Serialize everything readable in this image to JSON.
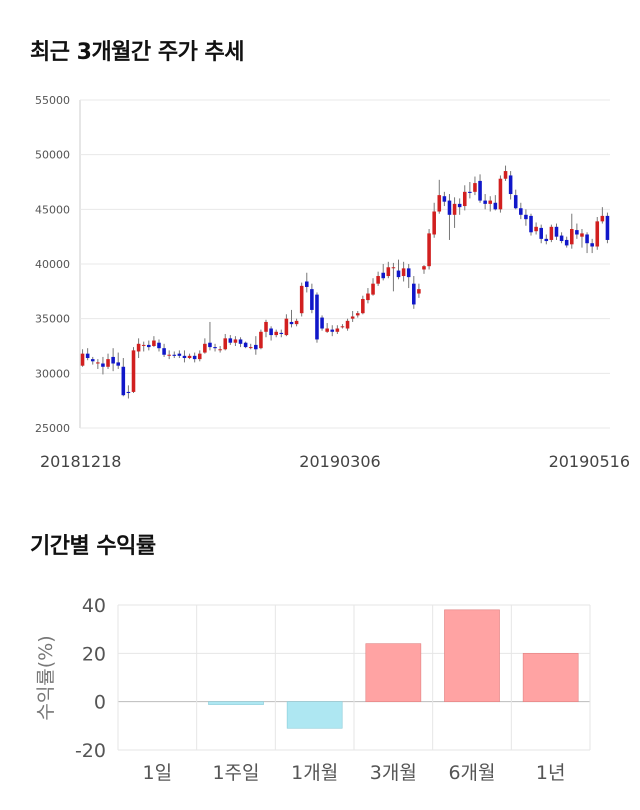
{
  "sections": {
    "price_title": "최근 3개월간 주가 추세",
    "returns_title": "기간별 수익률"
  },
  "chart_data": [
    {
      "type": "candlestick",
      "title": "최근 3개월간 주가 추세",
      "ylim": [
        25000,
        55000
      ],
      "y_ticks": [
        "55000",
        "50000",
        "45000",
        "40000",
        "35000",
        "30000",
        "25000"
      ],
      "x_labels": [
        "20181218",
        "20190306",
        "20190516"
      ],
      "grid": true,
      "colors": {
        "up": "#d11f1f",
        "down": "#1017c9",
        "wick": "#777777"
      },
      "candles": [
        [
          30700,
          31800,
          32200,
          30600
        ],
        [
          31800,
          31400,
          32300,
          31200
        ],
        [
          31300,
          31100,
          31500,
          30800
        ],
        [
          30900,
          31000,
          31300,
          30400
        ],
        [
          30900,
          30600,
          31500,
          29900
        ],
        [
          30600,
          31300,
          31800,
          30400
        ],
        [
          31500,
          30900,
          32300,
          30200
        ],
        [
          31000,
          30700,
          31900,
          30400
        ],
        [
          30600,
          28000,
          31400,
          27900
        ],
        [
          28300,
          28200,
          28900,
          27700
        ],
        [
          28300,
          32100,
          32400,
          28200
        ],
        [
          32000,
          32700,
          33200,
          31400
        ],
        [
          32600,
          32600,
          32900,
          32000
        ],
        [
          32600,
          32400,
          33000,
          32100
        ],
        [
          32500,
          33000,
          33400,
          32400
        ],
        [
          32800,
          32300,
          33100,
          32000
        ],
        [
          32300,
          31700,
          32700,
          31500
        ],
        [
          31700,
          31700,
          32100,
          31300
        ],
        [
          31700,
          31600,
          32000,
          31400
        ],
        [
          31800,
          31600,
          32100,
          31400
        ],
        [
          31600,
          31400,
          32100,
          31000
        ],
        [
          31400,
          31600,
          31800,
          31300
        ],
        [
          31600,
          31300,
          31900,
          31000
        ],
        [
          31300,
          31800,
          32100,
          31100
        ],
        [
          31900,
          32700,
          33200,
          31800
        ],
        [
          32800,
          32400,
          34700,
          32100
        ],
        [
          32400,
          32300,
          32700,
          32000
        ],
        [
          32200,
          32200,
          32500,
          31900
        ],
        [
          32200,
          33200,
          33600,
          32100
        ],
        [
          33200,
          32800,
          33500,
          32600
        ],
        [
          32800,
          33100,
          33400,
          32500
        ],
        [
          33100,
          32700,
          33300,
          32400
        ],
        [
          32800,
          32400,
          32900,
          32300
        ],
        [
          32400,
          32400,
          32700,
          32200
        ],
        [
          32600,
          32200,
          33400,
          31700
        ],
        [
          32300,
          33800,
          34000,
          32200
        ],
        [
          33800,
          34700,
          34900,
          33300
        ],
        [
          34100,
          33500,
          34300,
          33000
        ],
        [
          33500,
          33800,
          34000,
          33300
        ],
        [
          33700,
          33600,
          34000,
          33300
        ],
        [
          33500,
          35000,
          35400,
          33400
        ],
        [
          34700,
          34500,
          35800,
          34200
        ],
        [
          34500,
          34800,
          35000,
          34300
        ],
        [
          35500,
          38000,
          38300,
          35200
        ],
        [
          38400,
          37900,
          39200,
          37400
        ],
        [
          37700,
          35800,
          38200,
          35500
        ],
        [
          37200,
          33100,
          37400,
          32800
        ],
        [
          35100,
          34100,
          35300,
          33900
        ],
        [
          33800,
          34100,
          34600,
          33700
        ],
        [
          34000,
          33800,
          34400,
          33400
        ],
        [
          33800,
          34100,
          34400,
          33600
        ],
        [
          34300,
          34300,
          34500,
          34100
        ],
        [
          34100,
          34800,
          35000,
          33900
        ],
        [
          35000,
          35200,
          35700,
          34700
        ],
        [
          35300,
          35500,
          35700,
          35100
        ],
        [
          35500,
          36800,
          37100,
          35400
        ],
        [
          36700,
          37300,
          37800,
          36400
        ],
        [
          37200,
          38200,
          38700,
          37100
        ],
        [
          38200,
          38900,
          39300,
          38000
        ],
        [
          39200,
          38700,
          40000,
          38500
        ],
        [
          38900,
          39700,
          40200,
          38700
        ],
        [
          39700,
          39700,
          40100,
          37500
        ],
        [
          39400,
          38800,
          40400,
          38600
        ],
        [
          38900,
          39600,
          40200,
          38400
        ],
        [
          39600,
          38800,
          40000,
          37800
        ],
        [
          38200,
          36300,
          38900,
          35900
        ],
        [
          37300,
          37700,
          38200,
          36900
        ],
        [
          39500,
          39800,
          39900,
          39100
        ],
        [
          39800,
          42800,
          43200,
          39500
        ],
        [
          42700,
          44800,
          45600,
          42400
        ],
        [
          44800,
          46300,
          47700,
          44600
        ],
        [
          46200,
          45700,
          46600,
          45300
        ],
        [
          45800,
          44500,
          46400,
          42200
        ],
        [
          44500,
          45500,
          46100,
          43300
        ],
        [
          45500,
          45200,
          46000,
          44500
        ],
        [
          45300,
          46600,
          47200,
          44900
        ],
        [
          46600,
          46500,
          47500,
          46000
        ],
        [
          46600,
          47400,
          48000,
          46300
        ],
        [
          47600,
          45800,
          48200,
          45600
        ],
        [
          45800,
          45500,
          46400,
          45000
        ],
        [
          45500,
          45800,
          46200,
          44800
        ],
        [
          45600,
          45000,
          46300,
          44900
        ],
        [
          45000,
          47800,
          48100,
          44700
        ],
        [
          47800,
          48500,
          49000,
          47600
        ],
        [
          48100,
          46400,
          48500,
          45900
        ],
        [
          46300,
          45100,
          46800,
          45000
        ],
        [
          45100,
          44500,
          45600,
          44100
        ],
        [
          44500,
          44100,
          45000,
          43500
        ],
        [
          44400,
          42900,
          44600,
          42600
        ],
        [
          43000,
          43400,
          43800,
          42700
        ],
        [
          43300,
          42300,
          43600,
          41900
        ],
        [
          42300,
          42100,
          42700,
          41800
        ],
        [
          42200,
          43400,
          43600,
          42000
        ],
        [
          43400,
          42500,
          43700,
          42200
        ],
        [
          42600,
          42100,
          42900,
          41900
        ],
        [
          42200,
          41700,
          42500,
          41500
        ],
        [
          41800,
          43200,
          44600,
          41400
        ],
        [
          43100,
          42700,
          43700,
          42300
        ],
        [
          42500,
          42800,
          43200,
          41500
        ],
        [
          42700,
          41900,
          42900,
          41000
        ],
        [
          41900,
          41600,
          42300,
          41000
        ],
        [
          41600,
          43900,
          44300,
          41300
        ],
        [
          43900,
          44400,
          45200,
          43700
        ],
        [
          44400,
          42200,
          44700,
          41900
        ]
      ]
    },
    {
      "type": "bar",
      "categories": [
        "1일",
        "1주일",
        "1개월",
        "3개월",
        "6개월",
        "1년"
      ],
      "values": [
        0,
        -1.2,
        -11,
        24,
        38,
        20
      ],
      "ylabel": "수익률(%)",
      "ylim": [
        -20,
        40
      ],
      "y_ticks": [
        "40",
        "20",
        "0",
        "-20"
      ],
      "grid": true,
      "colors": {
        "positive": "#ffa3a3",
        "negative": "#aee7f2"
      }
    }
  ]
}
